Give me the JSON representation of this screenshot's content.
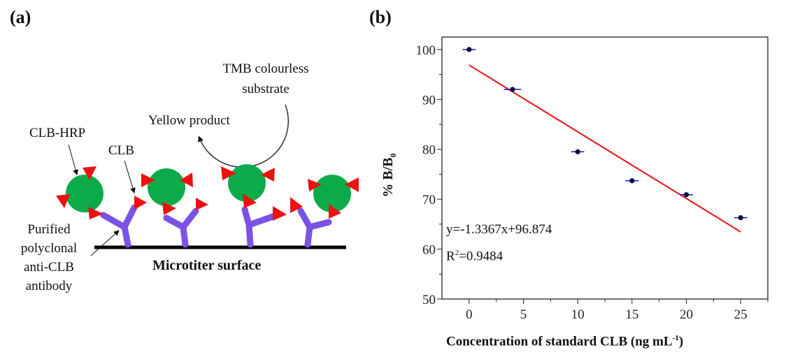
{
  "panel_a": {
    "label": "(a)",
    "tmb_line1": "TMB colourless",
    "tmb_line2": "substrate",
    "yellow_product": "Yellow product",
    "clb_hrp": "CLB-HRP",
    "clb": "CLB",
    "antibody_lines": [
      "Purified",
      "polyclonal",
      "anti-CLB",
      "antibody"
    ],
    "surface": "Microtiter surface",
    "colors": {
      "hrp": "#0bab4a",
      "clb": "#ee1111",
      "antibody": "#7b52e6"
    }
  },
  "panel_b": {
    "label": "(b)"
  },
  "chart_data": {
    "type": "scatter",
    "xlabel": "Concentration of standard CLB (ng mL",
    "xlabel_sup": "-1",
    "xlabel_end": ")",
    "ylabel": "% B/B",
    "ylabel_sub": "0",
    "xlim": [
      -2.5,
      27.5
    ],
    "ylim": [
      50,
      102.5
    ],
    "xticks": [
      0,
      5,
      10,
      15,
      20,
      25
    ],
    "yticks": [
      50,
      60,
      70,
      80,
      90,
      100
    ],
    "grid": false,
    "x": [
      0,
      4,
      10,
      15,
      20,
      25
    ],
    "y": [
      100,
      92,
      79.5,
      73.7,
      70.9,
      66.3
    ],
    "x_error": [
      0.6,
      0.8,
      0.6,
      0.6,
      0.6,
      0.6
    ],
    "fit": {
      "slope": -1.3367,
      "intercept": 96.874,
      "x_range": [
        0,
        25
      ],
      "color": "#ee1111"
    },
    "equation": "y=-1.3367x+96.874",
    "r2_label": "R",
    "r2_sup": "2",
    "r2_value": "=0.9484",
    "point_color": "#0a0a3a",
    "errorbar_color": "#1010dd"
  }
}
